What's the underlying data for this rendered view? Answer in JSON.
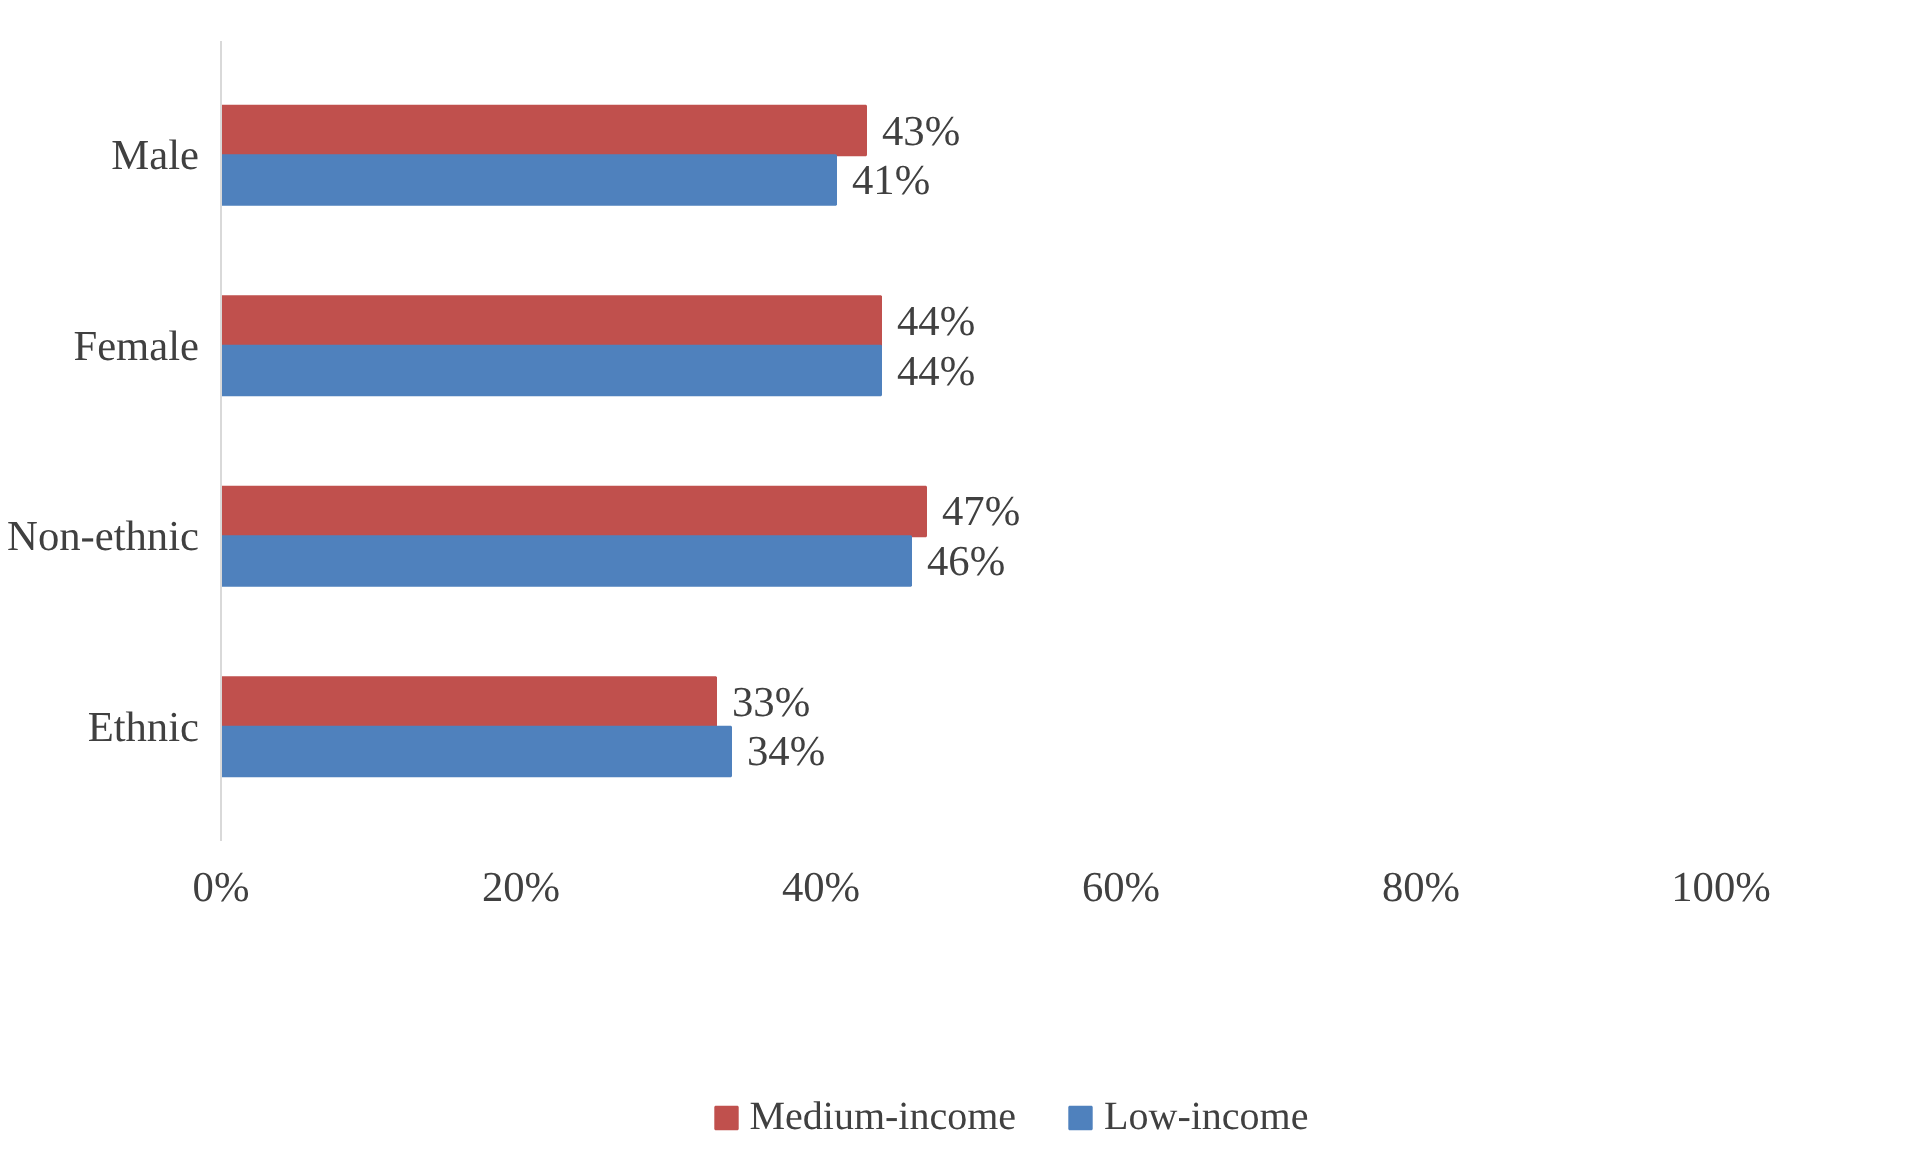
{
  "chart_data": {
    "type": "bar",
    "orientation": "horizontal",
    "categories": [
      "Male",
      "Female",
      "Non-ethnic",
      "Ethnic"
    ],
    "series": [
      {
        "name": "Medium-income",
        "color": "#c0504d",
        "values": [
          43,
          44,
          47,
          33
        ],
        "value_labels": [
          "43%",
          "44%",
          "47%",
          "33%"
        ]
      },
      {
        "name": "Low-income",
        "color": "#4f81bd",
        "values": [
          41,
          44,
          46,
          34
        ],
        "value_labels": [
          "41%",
          "44%",
          "46%",
          "34%"
        ]
      }
    ],
    "xlim": [
      0,
      100
    ],
    "xticks": [
      {
        "value": 0,
        "label": "0%"
      },
      {
        "value": 20,
        "label": "20%"
      },
      {
        "value": 40,
        "label": "40%"
      },
      {
        "value": 60,
        "label": "60%"
      },
      {
        "value": 80,
        "label": "80%"
      },
      {
        "value": 100,
        "label": "100%"
      }
    ],
    "grid": false,
    "legend": "bottom"
  }
}
